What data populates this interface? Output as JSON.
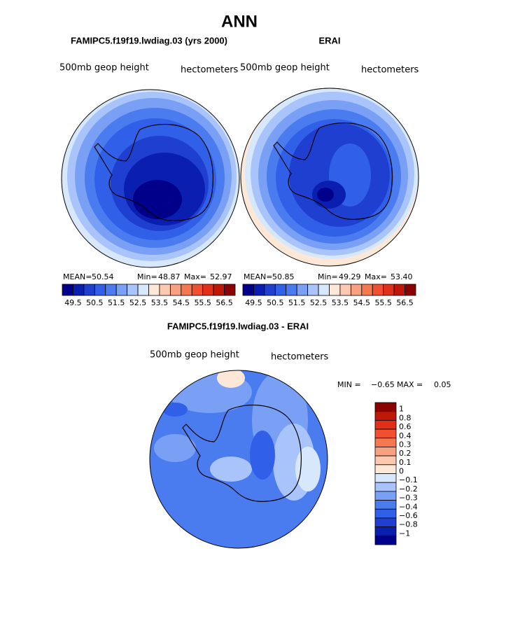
{
  "title": "ANN",
  "panels": [
    {
      "title": "FAMIPC5.f19f19.lwdiag.03 (yrs 2000)",
      "left_label": "500mb geop height",
      "right_label": "hectometers",
      "mean_label": "MEAN=",
      "mean": "50.54",
      "min_label": "Min=",
      "min": "48.87",
      "max_label": "Max=",
      "max": "52.97"
    },
    {
      "title": "ERAI",
      "left_label": "500mb geop height",
      "right_label": "hectometers",
      "mean_label": "MEAN=",
      "mean": "50.85",
      "min_label": "Min=",
      "min": "49.29",
      "max_label": "Max=",
      "max": "53.40"
    }
  ],
  "colorbar": {
    "labels": [
      "49.5",
      "50.5",
      "51.5",
      "52.5",
      "53.5",
      "54.5",
      "55.5",
      "56.5"
    ],
    "colors": [
      "#00008b",
      "#0a1fb0",
      "#1f3fd0",
      "#3060e8",
      "#4a7cf0",
      "#7aa0f5",
      "#a8c4fa",
      "#d8e8fc",
      "#fde8d8",
      "#fcc8b0",
      "#f8a080",
      "#f67850",
      "#f05030",
      "#e03018",
      "#c01808",
      "#8b0000"
    ]
  },
  "diff": {
    "title": "FAMIPC5.f19f19.lwdiag.03 - ERAI",
    "left_label": "500mb geop height",
    "right_label": "hectometers",
    "min_label": "MIN =",
    "min": "−0.65",
    "max_label": "MAX =",
    "max": "0.05",
    "colorbar": {
      "labels": [
        "1",
        "0.8",
        "0.6",
        "0.4",
        "0.3",
        "0.2",
        "0.1",
        "0",
        "−0.1",
        "−0.2",
        "−0.3",
        "−0.4",
        "−0.6",
        "−0.8",
        "−1"
      ],
      "colors": [
        "#8b0000",
        "#c01808",
        "#e03018",
        "#f05030",
        "#f67850",
        "#f8a080",
        "#fcc8b0",
        "#fde8d8",
        "#d8e8fc",
        "#a8c4fa",
        "#7aa0f5",
        "#4a7cf0",
        "#3060e8",
        "#1f3fd0",
        "#0a1fb0",
        "#00008b"
      ]
    }
  }
}
